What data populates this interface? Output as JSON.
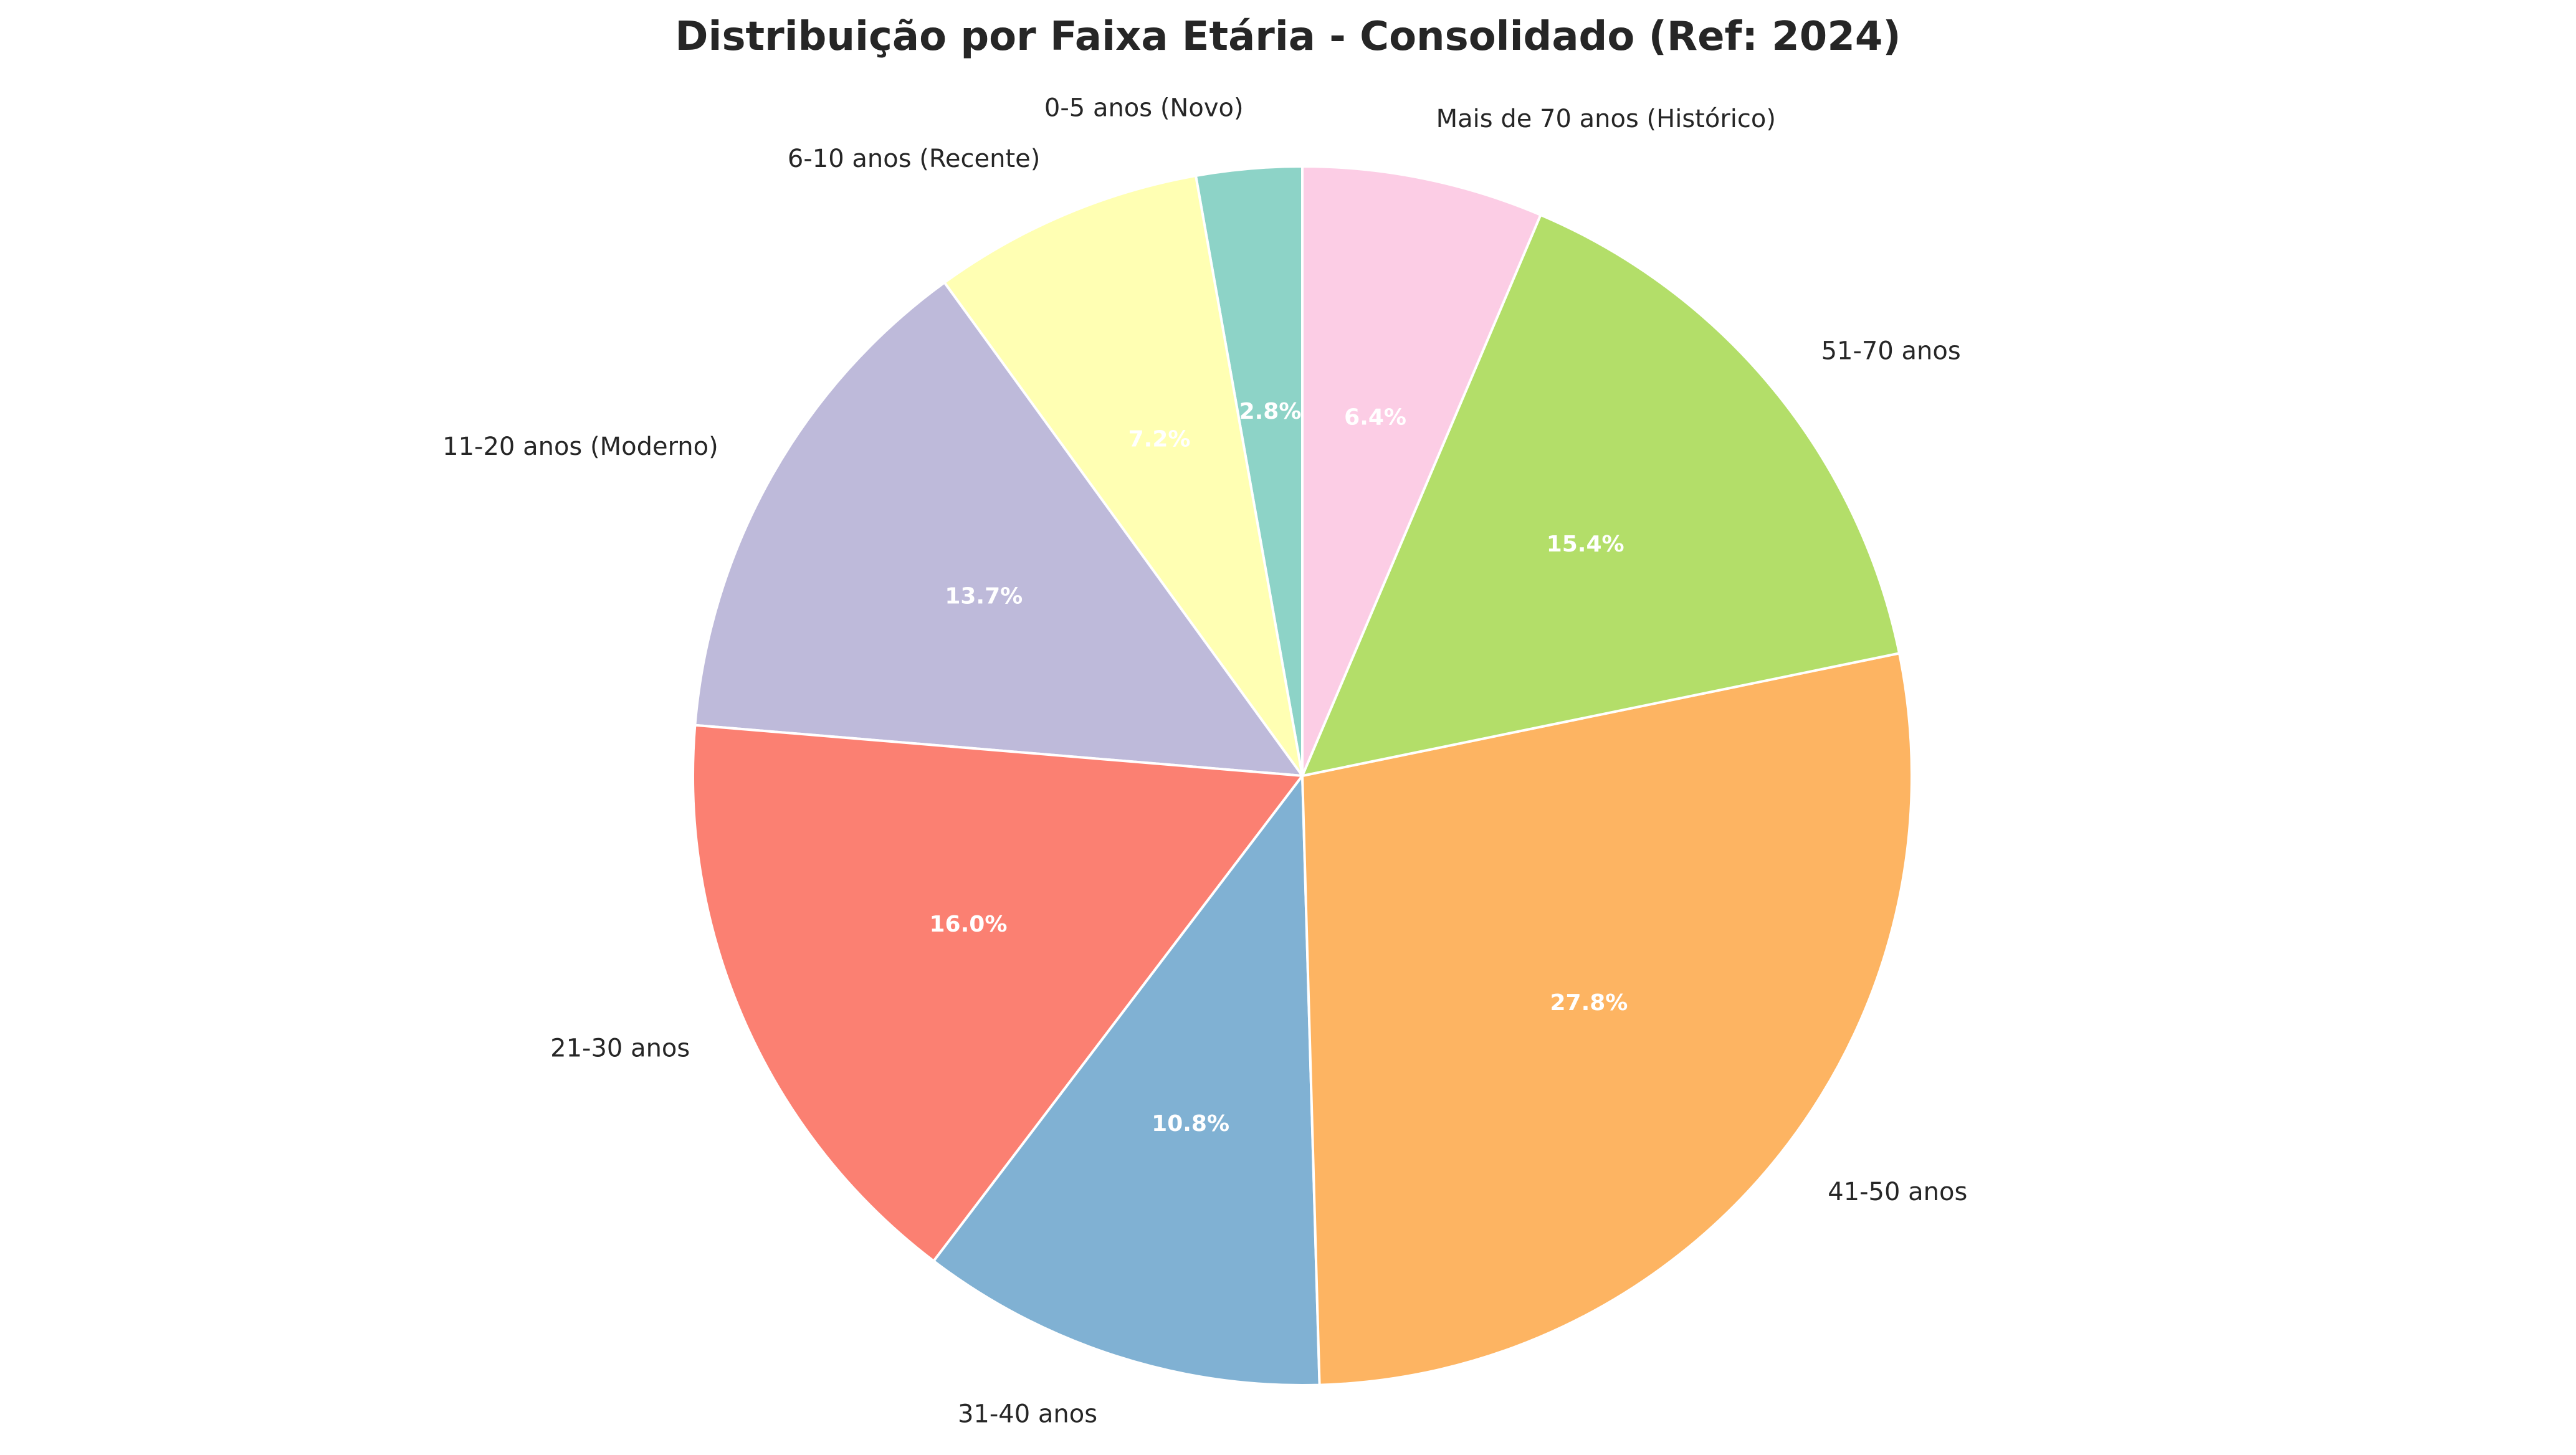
{
  "chart_data": {
    "type": "pie",
    "title": "Distribuição por Faixa Etária - Consolidado (Ref: 2024)",
    "start": "top",
    "direction": "counterclockwise",
    "slices": [
      {
        "label": "0-5 anos (Novo)",
        "pct_label": "2.8%",
        "value": 2.8,
        "color": "#8dd3c7"
      },
      {
        "label": "6-10 anos (Recente)",
        "pct_label": "7.2%",
        "value": 7.2,
        "color": "#ffffb3"
      },
      {
        "label": "11-20 anos (Moderno)",
        "pct_label": "13.7%",
        "value": 13.7,
        "color": "#bebada"
      },
      {
        "label": "21-30 anos",
        "pct_label": "16.0%",
        "value": 16.0,
        "color": "#fb8072"
      },
      {
        "label": "31-40 anos",
        "pct_label": "10.8%",
        "value": 10.8,
        "color": "#80b1d3"
      },
      {
        "label": "41-50 anos",
        "pct_label": "27.8%",
        "value": 27.8,
        "color": "#fdb462"
      },
      {
        "label": "51-70 anos",
        "pct_label": "15.4%",
        "value": 15.4,
        "color": "#b3de69"
      },
      {
        "label": "Mais de 70 anos (Histórico)",
        "pct_label": "6.4%",
        "value": 6.4,
        "color": "#fccde5"
      }
    ]
  }
}
